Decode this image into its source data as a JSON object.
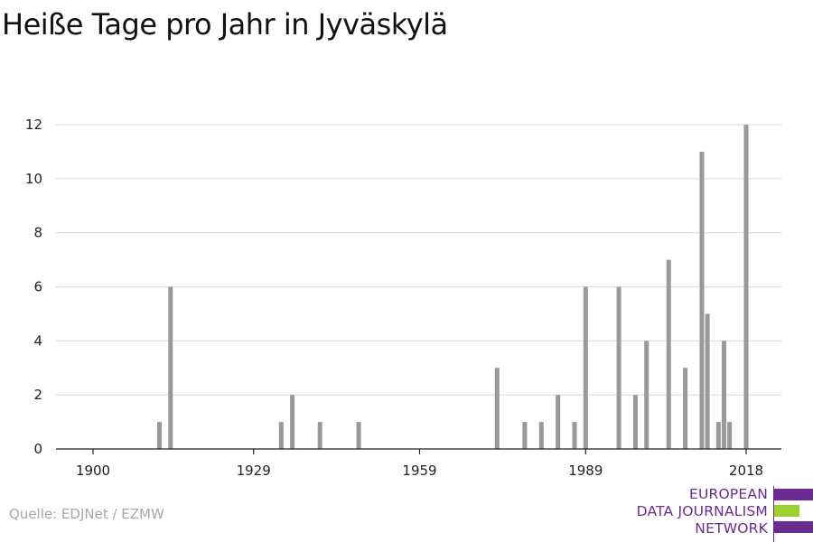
{
  "title": "Heiße Tage pro Jahr in Jyväskylä",
  "source": "Quelle: EDJNet / EZMW",
  "logo": {
    "line1": "EUROPEAN",
    "line2": "DATA JOURNALISM",
    "line3": "NETWORK",
    "colors": {
      "purple": "#6a2c91",
      "green": "#9bd22d"
    }
  },
  "chart_data": {
    "type": "bar",
    "title": "Heiße Tage pro Jahr in Jyväskylä",
    "xlabel": "",
    "ylabel": "",
    "xlim": [
      1900,
      2018
    ],
    "ylim": [
      0,
      12
    ],
    "xticks": [
      1900,
      1929,
      1959,
      1989,
      2018
    ],
    "yticks": [
      0,
      2,
      4,
      6,
      8,
      10,
      12
    ],
    "grid": true,
    "bar_color": "#999999",
    "x": [
      1912,
      1914,
      1934,
      1936,
      1941,
      1948,
      1973,
      1978,
      1981,
      1984,
      1987,
      1989,
      1995,
      1998,
      2000,
      2004,
      2007,
      2010,
      2011,
      2013,
      2014,
      2015,
      2018
    ],
    "values": [
      1,
      6,
      1,
      2,
      1,
      1,
      3,
      1,
      1,
      2,
      1,
      6,
      6,
      2,
      4,
      7,
      3,
      11,
      5,
      1,
      4,
      1,
      12
    ]
  }
}
